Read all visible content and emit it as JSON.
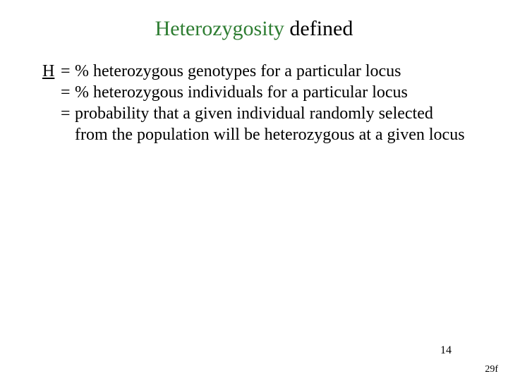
{
  "title": {
    "word1": "Heterozygosity",
    "word2": "defined",
    "word1_color": "#2e7d32",
    "fontsize": 30
  },
  "definitions": {
    "symbol": "H",
    "eq": "=",
    "lines": [
      "% heterozygous genotypes for a particular locus",
      "% heterozygous individuals for a particular locus",
      "probability that a given individual randomly selected from the population will be heterozygous at a given locus"
    ],
    "fontsize": 24
  },
  "page_number": "14",
  "footer_label": "29f",
  "background_color": "#ffffff",
  "text_color": "#000000"
}
